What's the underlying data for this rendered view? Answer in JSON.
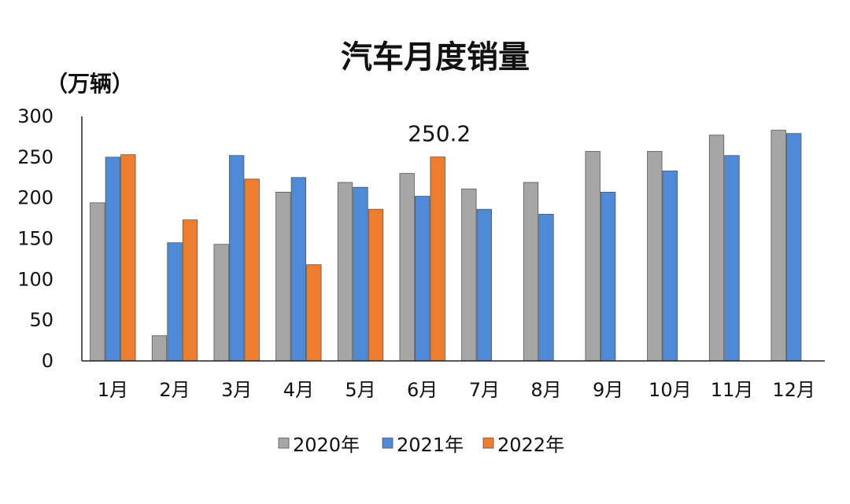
{
  "chart_data": {
    "type": "bar",
    "title": "汽车月度销量",
    "unit_label": "（万辆）",
    "xlabel": "",
    "ylabel": "",
    "ylim": [
      0,
      300
    ],
    "yticks": [
      0,
      50,
      100,
      150,
      200,
      250,
      300
    ],
    "grid": false,
    "legend_position": "bottom",
    "categories": [
      "1月",
      "2月",
      "3月",
      "4月",
      "5月",
      "6月",
      "7月",
      "8月",
      "9月",
      "10月",
      "11月",
      "12月"
    ],
    "series": [
      {
        "name": "2020年",
        "color": "#a6a6a6",
        "values": [
          194,
          31,
          143,
          207,
          219,
          230,
          211,
          219,
          257,
          257,
          277,
          283
        ]
      },
      {
        "name": "2021年",
        "color": "#4f8ad8",
        "values": [
          250,
          145,
          252,
          225,
          213,
          202,
          186,
          180,
          207,
          233,
          252,
          279
        ]
      },
      {
        "name": "2022年",
        "color": "#ef7d2e",
        "values": [
          253,
          173,
          223,
          118,
          186,
          250.2,
          null,
          null,
          null,
          null,
          null,
          null
        ]
      }
    ],
    "annotations": [
      {
        "text": "250.2",
        "category": "6月",
        "series": "2022年"
      }
    ]
  }
}
